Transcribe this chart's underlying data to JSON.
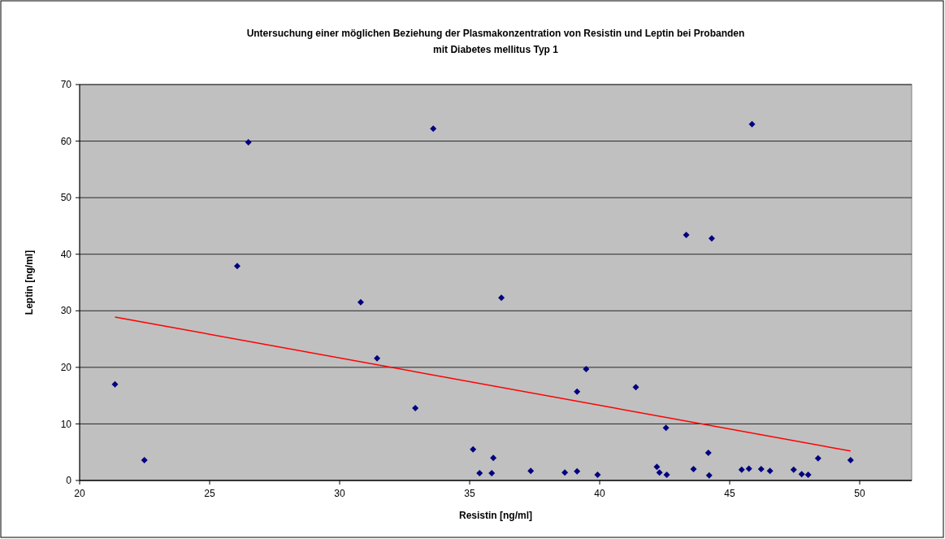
{
  "chart_data": {
    "type": "scatter",
    "title": "Untersuchung einer möglichen Beziehung der Plasmakonzentration von Resistin und Leptin bei Probanden mit Diabetes mellitus Typ 1",
    "xlabel": "Resistin [ng/ml]",
    "ylabel": "Leptin [ng/ml]",
    "xlim": [
      20,
      52
    ],
    "xticks": [
      20,
      25,
      30,
      35,
      40,
      45,
      50
    ],
    "ylim": [
      0,
      70
    ],
    "yticks": [
      0,
      10,
      20,
      30,
      40,
      50,
      60,
      70
    ],
    "grid": "y",
    "series": [
      {
        "marker": "diamond",
        "color": "#000080",
        "x": [
          21.36,
          22.49,
          26.06,
          26.49,
          30.81,
          31.44,
          32.91,
          33.6,
          35.13,
          35.38,
          35.85,
          35.91,
          36.22,
          37.35,
          38.66,
          39.13,
          39.13,
          39.48,
          39.92,
          41.39,
          42.2,
          42.3,
          42.55,
          42.58,
          43.33,
          43.61,
          44.31,
          44.18,
          44.21,
          45.46,
          45.74,
          45.86,
          46.21,
          46.55,
          47.46,
          47.77,
          48.02,
          48.4,
          49.65
        ],
        "values": [
          17.0,
          3.6,
          37.9,
          59.8,
          31.5,
          21.6,
          12.8,
          62.2,
          5.5,
          1.3,
          1.3,
          4.0,
          32.3,
          1.7,
          1.4,
          1.6,
          15.7,
          19.7,
          1.0,
          16.5,
          2.4,
          1.4,
          9.3,
          1.0,
          43.4,
          2.0,
          42.8,
          4.9,
          0.9,
          1.9,
          2.1,
          63.0,
          2.0,
          1.7,
          1.9,
          1.1,
          1.0,
          3.9,
          3.6
        ]
      },
      {
        "type": "line",
        "color": "#ff0000",
        "x": [
          21.36,
          49.65
        ],
        "values": [
          28.9,
          5.2
        ]
      }
    ]
  }
}
